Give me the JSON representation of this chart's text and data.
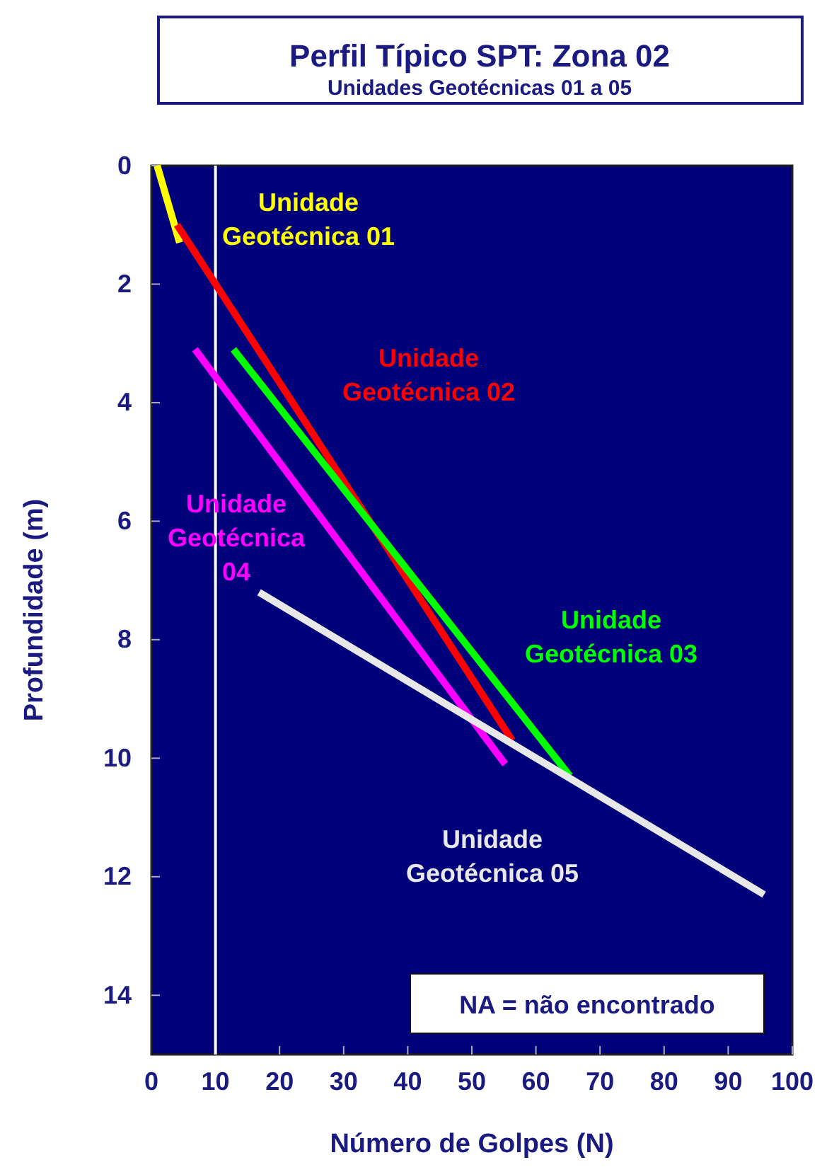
{
  "chart_data": {
    "type": "line",
    "title": "Perfil Típico SPT: Zona 02",
    "subtitle": "Unidades Geotécnicas 01 a 05",
    "xlabel": "Número de Golpes (N)",
    "ylabel": "Profundidade (m)",
    "xlim": [
      0,
      100
    ],
    "xticks": [
      0,
      10,
      20,
      30,
      40,
      50,
      60,
      70,
      80,
      90,
      100
    ],
    "ylim": [
      15,
      0
    ],
    "yticks": [
      0,
      2,
      4,
      6,
      8,
      10,
      12,
      14
    ],
    "grid": false,
    "marker": "none",
    "line_style": "solid",
    "series": [
      {
        "name": "Unidade Geotécnica 01",
        "color": "#ffff00",
        "x": [
          0.9,
          4.4
        ],
        "values": [
          0,
          1.3
        ]
      },
      {
        "name": "Unidade Geotécnica 02",
        "color": "#ff0000",
        "x": [
          4,
          56.3
        ],
        "values": [
          1.0,
          9.7
        ]
      },
      {
        "name": "Unidade Geotécnica 03",
        "color": "#00ff00",
        "x": [
          12.8,
          65.3
        ],
        "values": [
          3.1,
          10.3
        ]
      },
      {
        "name": "Unidade Geotécnica 04",
        "color": "#ff00ff",
        "x": [
          6.8,
          55.2
        ],
        "values": [
          3.1,
          10.1
        ]
      },
      {
        "name": "Unidade Geotécnica 05",
        "color": "#e8e8e8",
        "x": [
          16.8,
          95.6
        ],
        "values": [
          7.2,
          12.3
        ]
      }
    ],
    "ref_lines": [
      {
        "axis": "x",
        "value": 10,
        "color": "#ffffff"
      }
    ],
    "annotations": [
      "NA = não encontrado"
    ]
  }
}
